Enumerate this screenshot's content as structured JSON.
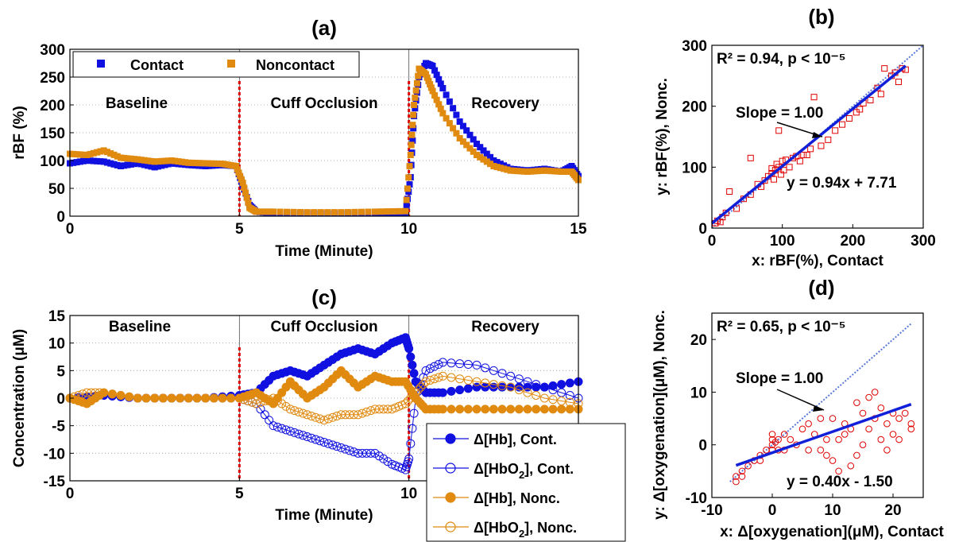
{
  "chart_data": [
    {
      "type": "line",
      "title": "(a)",
      "xlabel": "Time (Minute)",
      "ylabel": "rBF (%)",
      "xlim": [
        0,
        15
      ],
      "ylim": [
        0,
        300
      ],
      "xticks": [
        "0",
        "5",
        "10",
        "15"
      ],
      "yticks": [
        "0",
        "50",
        "100",
        "150",
        "200",
        "250",
        "300"
      ],
      "grid": true,
      "legend_position": "top-left",
      "regions": [
        "Baseline",
        "Cuff Occlusion",
        "Recovery"
      ],
      "markers_at": [
        5,
        10
      ],
      "series": [
        {
          "name": "Contact",
          "color": "#1010e0",
          "x": [
            0,
            0.5,
            1,
            1.5,
            2,
            2.5,
            3,
            3.5,
            4,
            4.5,
            4.9,
            5.1,
            5.3,
            5.5,
            6,
            7,
            8,
            9,
            9.9,
            10.05,
            10.15,
            10.3,
            10.5,
            10.7,
            11,
            11.5,
            12,
            12.5,
            13,
            13.5,
            14,
            14.5,
            14.8,
            15
          ],
          "y": [
            95,
            100,
            98,
            90,
            95,
            88,
            95,
            92,
            90,
            92,
            90,
            55,
            20,
            8,
            5,
            5,
            5,
            5,
            5,
            70,
            180,
            250,
            275,
            270,
            230,
            170,
            130,
            100,
            85,
            82,
            85,
            80,
            90,
            72
          ]
        },
        {
          "name": "Noncontact",
          "color": "#e08a10",
          "x": [
            0,
            0.5,
            1,
            1.5,
            2,
            2.5,
            3,
            3.5,
            4,
            4.5,
            4.9,
            5.1,
            5.3,
            5.5,
            6,
            7,
            8,
            9,
            9.9,
            10.05,
            10.15,
            10.3,
            10.5,
            10.7,
            11,
            11.5,
            12,
            12.5,
            13,
            13.5,
            14,
            14.5,
            14.8,
            15
          ],
          "y": [
            112,
            110,
            118,
            105,
            102,
            98,
            100,
            96,
            95,
            94,
            90,
            60,
            15,
            8,
            8,
            7,
            7,
            8,
            9,
            110,
            200,
            265,
            255,
            225,
            185,
            140,
            110,
            90,
            82,
            80,
            82,
            80,
            80,
            65
          ]
        }
      ]
    },
    {
      "type": "scatter",
      "title": "(b)",
      "xlabel": "x: rBF(%), Contact",
      "ylabel": "y: rBF(%), Nonc.",
      "xlim": [
        0,
        300
      ],
      "ylim": [
        0,
        300
      ],
      "xticks": [
        "0",
        "100",
        "200",
        "300"
      ],
      "yticks": [
        "0",
        "100",
        "200",
        "300"
      ],
      "r2_text": "R² = 0.94, p < 10⁻⁵",
      "slope_text": "Slope = 1.00",
      "fit_text": "y = 0.94x + 7.71",
      "fit": {
        "slope": 0.94,
        "intercept": 7.71
      },
      "points": [
        [
          5,
          8
        ],
        [
          8,
          12
        ],
        [
          12,
          10
        ],
        [
          15,
          18
        ],
        [
          20,
          25
        ],
        [
          25,
          60
        ],
        [
          35,
          32
        ],
        [
          45,
          48
        ],
        [
          55,
          55
        ],
        [
          55,
          115
        ],
        [
          65,
          72
        ],
        [
          70,
          68
        ],
        [
          75,
          78
        ],
        [
          80,
          85
        ],
        [
          85,
          90
        ],
        [
          85,
          98
        ],
        [
          88,
          80
        ],
        [
          90,
          95
        ],
        [
          92,
          105
        ],
        [
          95,
          100
        ],
        [
          95,
          160
        ],
        [
          98,
          88
        ],
        [
          100,
          110
        ],
        [
          102,
          95
        ],
        [
          105,
          112
        ],
        [
          110,
          100
        ],
        [
          115,
          115
        ],
        [
          120,
          118
        ],
        [
          130,
          120
        ],
        [
          140,
          130
        ],
        [
          145,
          215
        ],
        [
          155,
          135
        ],
        [
          165,
          145
        ],
        [
          175,
          160
        ],
        [
          185,
          170
        ],
        [
          195,
          180
        ],
        [
          205,
          190
        ],
        [
          210,
          195
        ],
        [
          215,
          205
        ],
        [
          225,
          210
        ],
        [
          235,
          230
        ],
        [
          240,
          220
        ],
        [
          245,
          262
        ],
        [
          255,
          250
        ],
        [
          260,
          255
        ],
        [
          265,
          240
        ],
        [
          270,
          262
        ],
        [
          275,
          260
        ],
        [
          135,
          120
        ],
        [
          125,
          110
        ]
      ]
    },
    {
      "type": "line",
      "title": "(c)",
      "xlabel": "Time (Minute)",
      "ylabel": "Concentration (μM)",
      "xlim": [
        0,
        15
      ],
      "ylim": [
        -15,
        15
      ],
      "xticks": [
        "0",
        "5",
        "10"
      ],
      "yticks": [
        "-15",
        "-10",
        "-5",
        "0",
        "5",
        "10",
        "15"
      ],
      "grid": true,
      "legend_position": "bottom-right",
      "regions": [
        "Baseline",
        "Cuff Occlusion",
        "Recovery"
      ],
      "markers_at": [
        5,
        10
      ],
      "series": [
        {
          "name": "Δ[Hb], Cont.",
          "label_main": "Δ[Hb], Cont.",
          "sub": "",
          "label_tail": "",
          "filled": true,
          "color": "#1010e0",
          "x": [
            0,
            1,
            2,
            3,
            4,
            5,
            5.5,
            6,
            6.5,
            7,
            7.5,
            8,
            8.5,
            9,
            9.5,
            9.9,
            10,
            10.2,
            10.5,
            11,
            12,
            13,
            14,
            15
          ],
          "y": [
            0,
            0.5,
            0,
            0,
            0,
            0.5,
            1,
            4,
            5,
            4,
            6,
            8,
            9,
            8,
            10,
            11,
            9,
            3,
            1,
            1,
            2,
            2,
            2,
            3
          ]
        },
        {
          "name": "Δ[HbO2], Cont.",
          "label_main": "Δ[HbO",
          "sub": "2",
          "label_tail": "], Cont.",
          "filled": false,
          "color": "#1010e0",
          "x": [
            0,
            1,
            2,
            3,
            4,
            5,
            5.5,
            6,
            6.5,
            7,
            7.5,
            8,
            8.5,
            9,
            9.5,
            9.9,
            10,
            10.2,
            10.5,
            11,
            12,
            13,
            14,
            15
          ],
          "y": [
            0,
            0.5,
            0,
            0,
            0,
            0,
            -1,
            -5,
            -6,
            -7,
            -8,
            -9,
            -10,
            -10,
            -12,
            -13,
            -11,
            0,
            5,
            6.5,
            6,
            4,
            2,
            0
          ]
        },
        {
          "name": "Δ[Hb], Nonc.",
          "label_main": "Δ[Hb], Nonc.",
          "sub": "",
          "label_tail": "",
          "filled": true,
          "color": "#e08a10",
          "x": [
            0,
            0.5,
            1,
            2,
            3,
            4,
            5,
            5.5,
            6,
            6.5,
            7,
            7.5,
            8,
            8.5,
            9,
            9.5,
            9.9,
            10.2,
            10.5,
            11,
            12,
            13,
            14,
            15
          ],
          "y": [
            0,
            -1,
            1,
            0,
            0,
            0,
            0,
            1,
            -1,
            3,
            0,
            2,
            5,
            2,
            4,
            3,
            3,
            0,
            -2,
            -2,
            -2,
            -2,
            -2,
            -2
          ]
        },
        {
          "name": "Δ[HbO2], Nonc.",
          "label_main": "Δ[HbO",
          "sub": "2",
          "label_tail": "], Nonc.",
          "filled": false,
          "color": "#e08a10",
          "x": [
            0,
            0.5,
            1,
            2,
            3,
            4,
            5,
            5.5,
            6,
            6.5,
            7,
            7.5,
            8,
            8.5,
            9,
            9.5,
            9.9,
            10.2,
            10.5,
            11,
            12,
            13,
            14,
            15
          ],
          "y": [
            0,
            1,
            1,
            0,
            0,
            0,
            0,
            -1,
            0,
            -2,
            -3,
            -4,
            -3,
            -3,
            -2,
            -2,
            -1,
            1,
            3,
            4,
            3,
            2,
            0,
            -1
          ]
        }
      ]
    },
    {
      "type": "scatter",
      "title": "(d)",
      "xlabel": "x:  Δ[oxygenation](μM), Contact",
      "ylabel": "y: Δ[oxygenation](μM), Nonc.",
      "xlim": [
        -10,
        25
      ],
      "ylim": [
        -10,
        25
      ],
      "xticks": [
        "-10",
        "0",
        "10",
        "20"
      ],
      "yticks": [
        "-10",
        "0",
        "10",
        "20"
      ],
      "r2_text": "R² = 0.65, p < 10⁻⁵",
      "slope_text": "Slope = 1.00",
      "fit_text": "y = 0.40x - 1.50",
      "fit": {
        "slope": 0.4,
        "intercept": -1.5
      },
      "points": [
        [
          -6,
          -6
        ],
        [
          -6,
          -7
        ],
        [
          -5,
          -5
        ],
        [
          -5,
          -6
        ],
        [
          -4,
          -4
        ],
        [
          -3,
          -3
        ],
        [
          -2,
          -2
        ],
        [
          -2,
          -3
        ],
        [
          -1,
          -1
        ],
        [
          0,
          0
        ],
        [
          0,
          1
        ],
        [
          0,
          2
        ],
        [
          0,
          -1
        ],
        [
          0.5,
          0.5
        ],
        [
          1,
          1
        ],
        [
          1,
          -1
        ],
        [
          2,
          2
        ],
        [
          2,
          -1
        ],
        [
          3,
          1
        ],
        [
          4,
          0
        ],
        [
          5,
          3
        ],
        [
          6,
          4
        ],
        [
          7,
          2
        ],
        [
          8,
          5
        ],
        [
          9,
          -2
        ],
        [
          10,
          -3
        ],
        [
          10,
          5
        ],
        [
          11,
          1
        ],
        [
          11,
          -5
        ],
        [
          12,
          2
        ],
        [
          12,
          4
        ],
        [
          13,
          3
        ],
        [
          14,
          8
        ],
        [
          14,
          -2
        ],
        [
          15,
          6
        ],
        [
          15,
          0
        ],
        [
          16,
          9
        ],
        [
          16,
          3
        ],
        [
          17,
          10
        ],
        [
          17,
          5
        ],
        [
          18,
          7
        ],
        [
          18,
          1
        ],
        [
          19,
          4
        ],
        [
          19,
          -1
        ],
        [
          20,
          6
        ],
        [
          20,
          2
        ],
        [
          21,
          5
        ],
        [
          21,
          1
        ],
        [
          22,
          6
        ],
        [
          23,
          4
        ],
        [
          23,
          3
        ],
        [
          13,
          -4
        ],
        [
          9,
          1
        ],
        [
          8,
          -1
        ],
        [
          6,
          -1
        ]
      ]
    }
  ]
}
